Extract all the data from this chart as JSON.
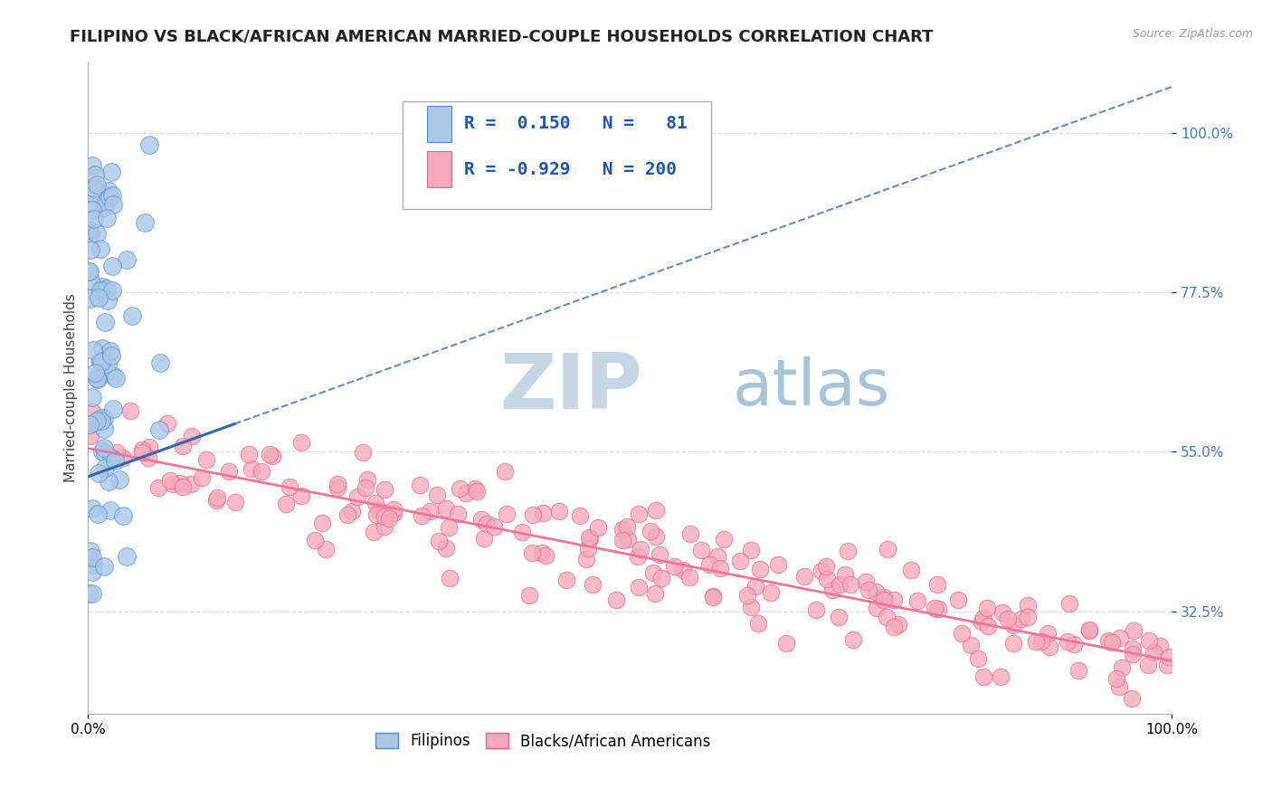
{
  "title": "FILIPINO VS BLACK/AFRICAN AMERICAN MARRIED-COUPLE HOUSEHOLDS CORRELATION CHART",
  "source": "Source: ZipAtlas.com",
  "ylabel": "Married-couple Households",
  "xlim": [
    0.0,
    1.0
  ],
  "ylim": [
    0.18,
    1.1
  ],
  "xticks": [
    0.0,
    1.0
  ],
  "xticklabels": [
    "0.0%",
    "100.0%"
  ],
  "yticks": [
    0.325,
    0.55,
    0.775,
    1.0
  ],
  "yticklabels": [
    "32.5%",
    "55.0%",
    "77.5%",
    "100.0%"
  ],
  "blue_color": "#aac8e8",
  "blue_edge": "#5588cc",
  "pink_color": "#f5aabc",
  "pink_edge": "#dd6688",
  "blue_line_color": "#3366aa",
  "pink_line_color": "#ee7799",
  "watermark_zip_color": "#c5d5e5",
  "watermark_atlas_color": "#a8c4d8",
  "background": "#ffffff",
  "grid_color": "#dddddd",
  "tick_color": "#4477bb",
  "seed": 12,
  "n_blue": 81,
  "n_pink": 200,
  "title_fontsize": 13,
  "axis_label_fontsize": 11,
  "tick_fontsize": 11,
  "legend_fontsize": 14,
  "source_fontsize": 9
}
